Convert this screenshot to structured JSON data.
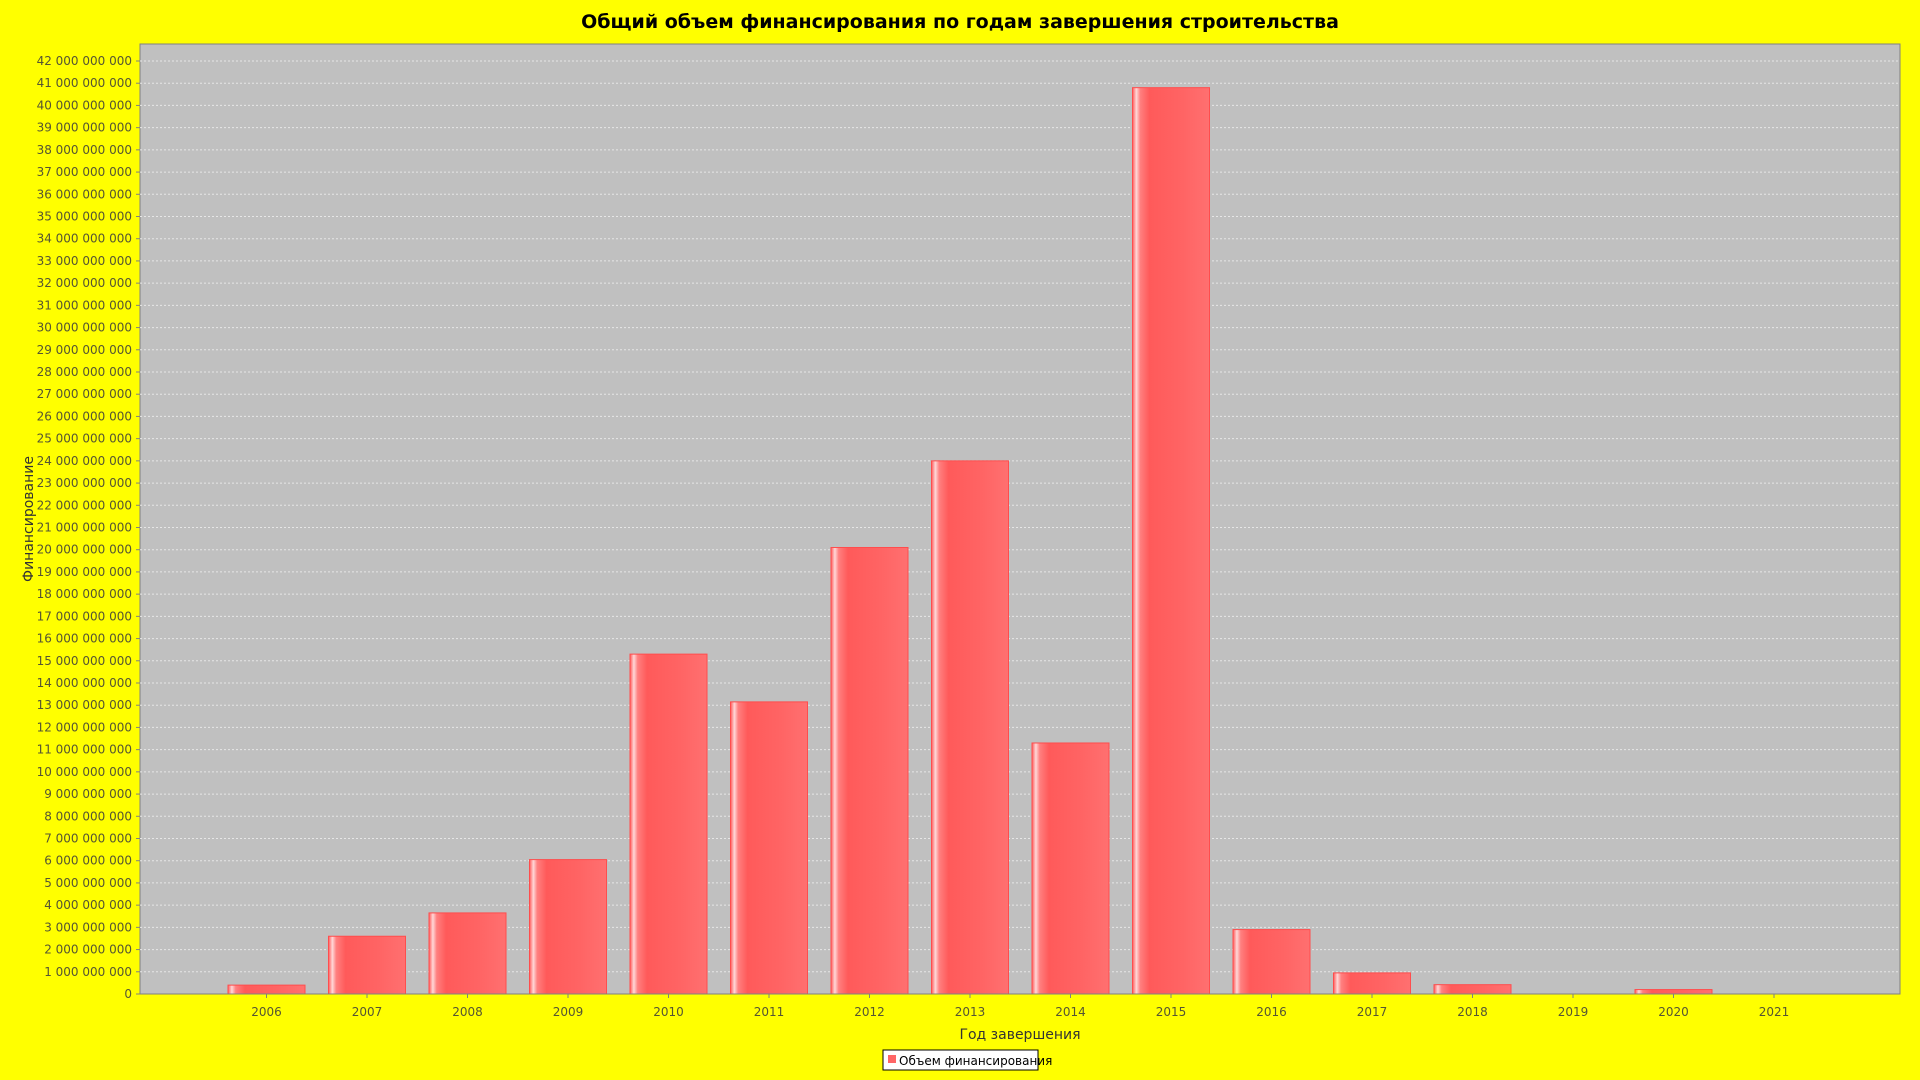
{
  "chart_data": {
    "type": "bar",
    "title": "Общий объем финансирования по годам завершения строительства",
    "xlabel": "Год завершения",
    "ylabel": "Финансирование",
    "categories": [
      "2006",
      "2007",
      "2008",
      "2009",
      "2010",
      "2011",
      "2012",
      "2013",
      "2014",
      "2015",
      "2016",
      "2017",
      "2018",
      "2019",
      "2020",
      "2021"
    ],
    "series": [
      {
        "name": "Объем финансирования",
        "values": [
          400000000,
          2600000000,
          3650000000,
          6050000000,
          15300000000,
          13150000000,
          20100000000,
          24000000000,
          11300000000,
          40800000000,
          2900000000,
          950000000,
          420000000,
          0,
          200000000,
          0
        ]
      }
    ],
    "ylim": [
      0,
      42000000000
    ],
    "ytick_step": 1000000000,
    "y_tick_labels": [
      "0",
      "1 000 000 000",
      "2 000 000 000",
      "3 000 000 000",
      "4 000 000 000",
      "5 000 000 000",
      "6 000 000 000",
      "7 000 000 000",
      "8 000 000 000",
      "9 000 000 000",
      "10 000 000 000",
      "11 000 000 000",
      "12 000 000 000",
      "13 000 000 000",
      "14 000 000 000",
      "15 000 000 000",
      "16 000 000 000",
      "17 000 000 000",
      "18 000 000 000",
      "19 000 000 000",
      "20 000 000 000",
      "21 000 000 000",
      "22 000 000 000",
      "23 000 000 000",
      "24 000 000 000",
      "25 000 000 000",
      "26 000 000 000",
      "27 000 000 000",
      "28 000 000 000",
      "29 000 000 000",
      "30 000 000 000",
      "31 000 000 000",
      "32 000 000 000",
      "33 000 000 000",
      "34 000 000 000",
      "35 000 000 000",
      "36 000 000 000",
      "37 000 000 000",
      "38 000 000 000",
      "39 000 000 000",
      "40 000 000 000",
      "41 000 000 000",
      "42 000 000 000"
    ],
    "grid": true,
    "legend_position": "bottom-center",
    "colors": {
      "background": "#ffff00",
      "plot_background": "#c0c0c0",
      "bar": "#ff6666",
      "bar_highlight": "#ffffff",
      "grid": "#e8e8e8"
    }
  }
}
